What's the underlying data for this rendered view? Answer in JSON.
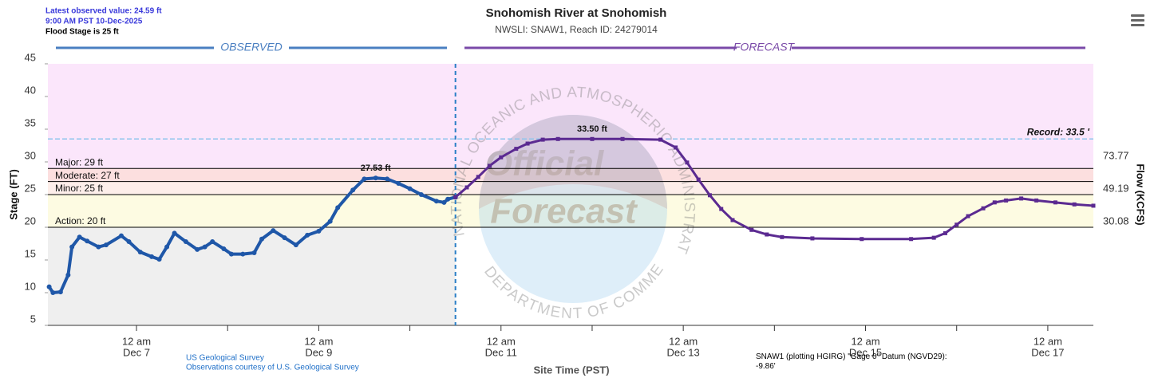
{
  "chart_data": {
    "type": "hydrograph",
    "status": [
      "Latest observed value: 24.59 ft",
      "9:00 AM PST 10-Dec-2025",
      "Flood Stage is 25 ft"
    ],
    "title": "Snohomish River at Snohomish",
    "subtitle": "NWSLI: SNAW1, Reach ID: 24279014",
    "observed_header": "OBSERVED",
    "forecast_header": "FORECAST",
    "ylabel": "Stage (FT)",
    "y2label": "Flow (KCFS)",
    "xlabel": "Site Time (PST)",
    "xlim": [
      "2025-12-06T00:40",
      "2025-12-17T12:00"
    ],
    "ylim": [
      5,
      45
    ],
    "yticks": [
      5,
      10,
      15,
      20,
      25,
      30,
      35,
      40,
      45
    ],
    "flow_ticks": [
      {
        "stage": 30,
        "flow": 73.77
      },
      {
        "stage": 25,
        "flow": 49.19
      },
      {
        "stage": 20,
        "flow": 30.08
      }
    ],
    "xticks": [
      {
        "value": "2025-12-07T00:00",
        "label": [
          "12 am",
          "Dec 7"
        ]
      },
      {
        "value": "2025-12-09T00:00",
        "label": [
          "12 am",
          "Dec 9"
        ]
      },
      {
        "value": "2025-12-11T00:00",
        "label": [
          "12 am",
          "Dec 11"
        ]
      },
      {
        "value": "2025-12-13T00:00",
        "label": [
          "12 am",
          "Dec 13"
        ]
      },
      {
        "value": "2025-12-15T00:00",
        "label": [
          "12 am",
          "Dec 15"
        ]
      },
      {
        "value": "2025-12-17T00:00",
        "label": [
          "12 am",
          "Dec 17"
        ]
      }
    ],
    "xminorticks": [
      "2025-12-08T00:00",
      "2025-12-10T00:00",
      "2025-12-12T00:00",
      "2025-12-14T00:00",
      "2025-12-16T00:00"
    ],
    "forecast_start": "2025-12-10T12:00",
    "observed_shade": "#efefef",
    "flood_categories": [
      {
        "label": "Action: 20 ft",
        "value": 20,
        "color": "#fdfbe2"
      },
      {
        "label": "Minor: 25 ft",
        "value": 25,
        "color": "#fdeeea"
      },
      {
        "label": "Moderate: 27 ft",
        "value": 27,
        "color": "#fcdfdf"
      },
      {
        "label": "Major: 29 ft",
        "value": 29,
        "color": "#fbe6fb"
      }
    ],
    "record": {
      "label": "Record: 33.5 '",
      "value": 33.5,
      "color": "#8ec5ec"
    },
    "series": [
      {
        "name": "Observed",
        "color": "#1f57a8",
        "marker": "circle",
        "x": [
          "2025-12-06T01:00",
          "2025-12-06T02:00",
          "2025-12-06T04:00",
          "2025-12-06T06:00",
          "2025-12-06T07:00",
          "2025-12-06T09:00",
          "2025-12-06T11:00",
          "2025-12-06T14:00",
          "2025-12-06T16:00",
          "2025-12-06T20:00",
          "2025-12-06T22:00",
          "2025-12-07T01:00",
          "2025-12-07T04:00",
          "2025-12-07T06:00",
          "2025-12-07T08:00",
          "2025-12-07T10:00",
          "2025-12-07T13:00",
          "2025-12-07T16:00",
          "2025-12-07T18:00",
          "2025-12-07T20:00",
          "2025-12-07T23:00",
          "2025-12-08T01:00",
          "2025-12-08T04:00",
          "2025-12-08T07:00",
          "2025-12-08T09:00",
          "2025-12-08T12:00",
          "2025-12-08T15:00",
          "2025-12-08T18:00",
          "2025-12-08T21:00",
          "2025-12-09T00:00",
          "2025-12-09T03:00",
          "2025-12-09T05:00",
          "2025-12-09T09:00",
          "2025-12-09T12:00",
          "2025-12-09T15:00",
          "2025-12-09T18:00",
          "2025-12-09T21:00",
          "2025-12-10T00:00",
          "2025-12-10T03:00",
          "2025-12-10T07:00",
          "2025-12-10T09:00",
          "2025-12-10T10:00",
          "2025-12-10T12:00"
        ],
        "values": [
          10.9,
          10.0,
          10.1,
          12.7,
          17.0,
          18.5,
          17.9,
          17.0,
          17.3,
          18.7,
          17.8,
          16.2,
          15.5,
          15.1,
          17.0,
          19.1,
          17.8,
          16.6,
          17.0,
          17.8,
          16.7,
          15.9,
          15.9,
          16.1,
          18.2,
          19.5,
          18.4,
          17.3,
          18.8,
          19.4,
          20.9,
          23.0,
          25.7,
          27.4,
          27.53,
          27.4,
          26.7,
          25.9,
          25.0,
          24.0,
          23.8,
          24.3,
          24.59
        ]
      },
      {
        "name": "Forecast",
        "color": "#5b2a91",
        "marker": "square",
        "x": [
          "2025-12-10T12:00",
          "2025-12-10T15:00",
          "2025-12-10T18:00",
          "2025-12-10T21:00",
          "2025-12-11T00:00",
          "2025-12-11T04:00",
          "2025-12-11T07:00",
          "2025-12-11T11:00",
          "2025-12-11T15:00",
          "2025-12-12T00:00",
          "2025-12-12T08:00",
          "2025-12-12T18:00",
          "2025-12-12T22:00",
          "2025-12-13T01:00",
          "2025-12-13T04:00",
          "2025-12-13T07:00",
          "2025-12-13T10:00",
          "2025-12-13T13:00",
          "2025-12-13T18:00",
          "2025-12-13T22:00",
          "2025-12-14T02:00",
          "2025-12-14T10:00",
          "2025-12-14T23:00",
          "2025-12-15T12:00",
          "2025-12-15T18:00",
          "2025-12-15T21:00",
          "2025-12-16T00:00",
          "2025-12-16T03:00",
          "2025-12-16T07:00",
          "2025-12-16T10:00",
          "2025-12-16T13:00",
          "2025-12-16T17:00",
          "2025-12-16T21:00",
          "2025-12-17T02:00",
          "2025-12-17T07:00",
          "2025-12-17T12:00"
        ],
        "values": [
          24.6,
          26.1,
          27.7,
          29.4,
          30.7,
          32.0,
          32.8,
          33.4,
          33.5,
          33.5,
          33.5,
          33.4,
          32.2,
          29.9,
          27.3,
          24.9,
          22.8,
          21.1,
          19.6,
          18.9,
          18.5,
          18.3,
          18.2,
          18.2,
          18.4,
          19.1,
          20.4,
          21.7,
          22.9,
          23.8,
          24.1,
          24.4,
          24.1,
          23.8,
          23.5,
          23.3
        ]
      }
    ],
    "annotations": [
      {
        "text": "27.53 ft",
        "x": "2025-12-09T15:00",
        "y": 27.53
      },
      {
        "text": "33.50 ft",
        "x": "2025-12-12T00:00",
        "y": 33.5
      }
    ],
    "credits": [
      "US Geological Survey",
      "Observations courtesy of U.S. Geological Survey"
    ],
    "datum_note": "SNAW1 (plotting HGIRG) \"Gage 0\" Datum (NGVD29): -9.86'",
    "watermark": {
      "top": "NATIONAL OCEANIC AND ATMOSPHERIC ADMINISTRATION",
      "bottom": "U.S. DEPARTMENT OF COMMERCE",
      "line1": "Official",
      "line2": "Forecast"
    }
  }
}
